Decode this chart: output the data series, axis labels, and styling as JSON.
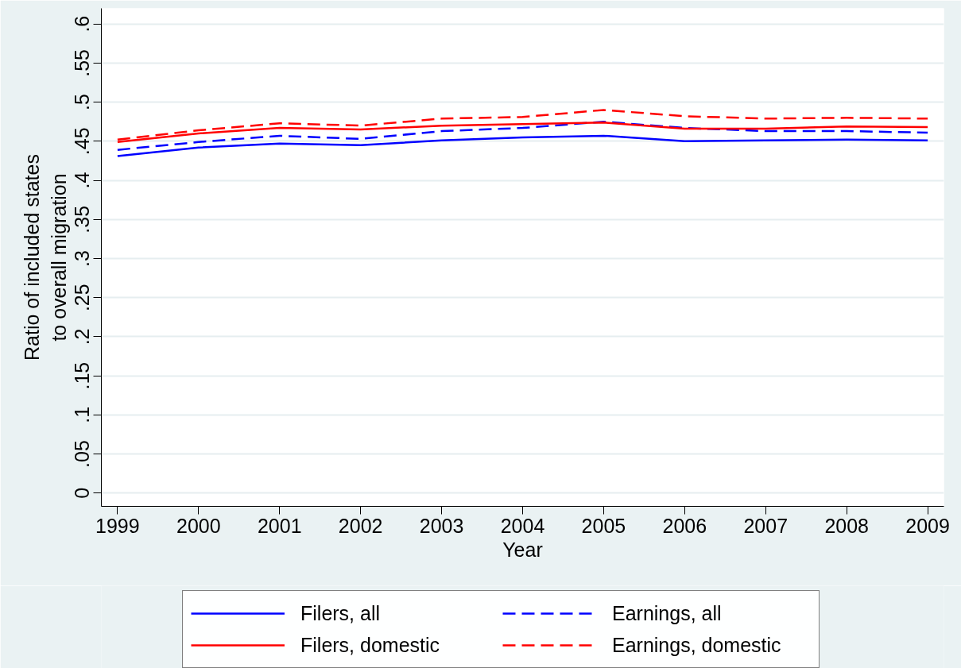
{
  "chart_data": {
    "type": "line",
    "xlabel": "Year",
    "ylabel": "Ratio of included states\nto overall migration",
    "x": [
      1999,
      2000,
      2001,
      2002,
      2003,
      2004,
      2005,
      2006,
      2007,
      2008,
      2009
    ],
    "series": [
      {
        "name": "Filers, all",
        "color": "#0000ff",
        "line_style": "solid",
        "values": [
          0.431,
          0.442,
          0.447,
          0.445,
          0.451,
          0.455,
          0.457,
          0.45,
          0.451,
          0.452,
          0.451
        ]
      },
      {
        "name": "Earnings, all",
        "color": "#0000ff",
        "line_style": "dashed",
        "values": [
          0.439,
          0.449,
          0.457,
          0.453,
          0.463,
          0.467,
          0.475,
          0.467,
          0.463,
          0.463,
          0.461
        ]
      },
      {
        "name": "Filers, domestic",
        "color": "#ff0000",
        "line_style": "solid",
        "values": [
          0.449,
          0.46,
          0.467,
          0.465,
          0.47,
          0.472,
          0.474,
          0.466,
          0.466,
          0.469,
          0.468
        ]
      },
      {
        "name": "Earnings, domestic",
        "color": "#ff0000",
        "line_style": "dashed",
        "values": [
          0.452,
          0.464,
          0.473,
          0.47,
          0.479,
          0.481,
          0.49,
          0.482,
          0.479,
          0.48,
          0.479
        ]
      }
    ],
    "xlim": [
      1998.8,
      2009.2
    ],
    "xticks": [
      1999,
      2000,
      2001,
      2002,
      2003,
      2004,
      2005,
      2006,
      2007,
      2008,
      2009
    ],
    "ylim": [
      -0.017,
      0.62
    ],
    "yticks": [
      0,
      {
        "value": 0.05,
        "label": ".05"
      },
      {
        "value": 0.1,
        "label": ".1"
      },
      {
        "value": 0.15,
        "label": ".15"
      },
      {
        "value": 0.2,
        "label": ".2"
      },
      {
        "value": 0.25,
        "label": ".25"
      },
      {
        "value": 0.3,
        "label": ".3"
      },
      {
        "value": 0.35,
        "label": ".35"
      },
      {
        "value": 0.4,
        "label": ".4"
      },
      {
        "value": 0.45,
        "label": ".45"
      },
      {
        "value": 0.5,
        "label": ".5"
      },
      {
        "value": 0.55,
        "label": ".55"
      },
      {
        "value": 0.6,
        "label": ".6"
      }
    ],
    "grid": "y",
    "legend": "bottom",
    "marker": "none"
  }
}
